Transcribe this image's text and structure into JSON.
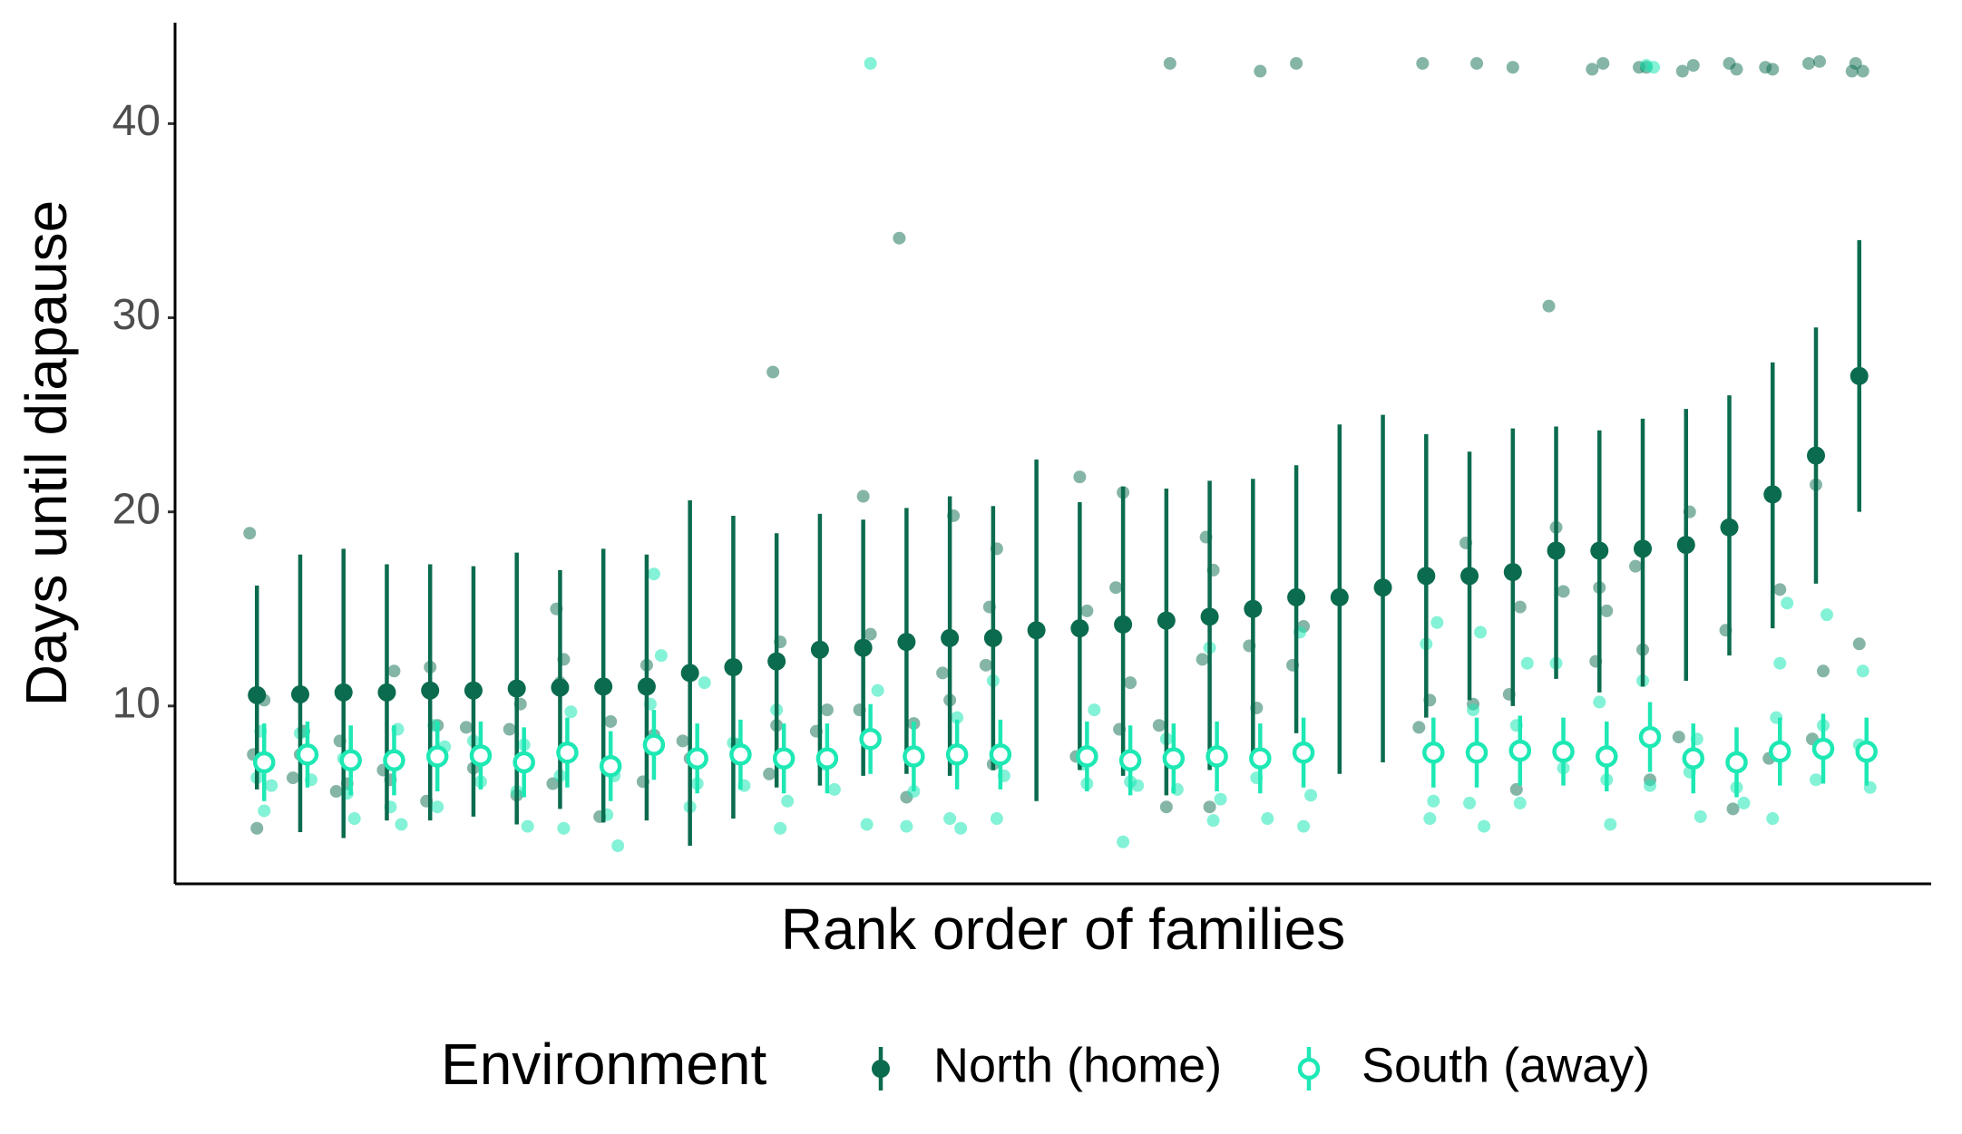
{
  "chart_data": {
    "type": "pointrange",
    "x_label": "Rank order of families",
    "y_label": "Days until diapause",
    "legend_title": "Environment",
    "legend_position": "bottom",
    "categories": [
      null,
      null,
      null,
      null,
      null,
      null,
      null,
      null,
      null,
      null,
      null,
      null,
      null,
      null,
      null,
      null,
      null,
      null,
      null,
      null,
      null,
      null,
      null,
      null,
      null,
      null,
      null,
      null,
      null,
      null,
      null,
      null,
      null,
      null,
      null,
      null,
      null,
      null
    ],
    "ylim": [
      0.84,
      45.2
    ],
    "yticks": [
      10,
      20,
      30,
      40
    ],
    "grid": false,
    "series": [
      {
        "name": "North (home)",
        "color": "#0b6b4e",
        "marker": "filled",
        "values": [
          10.56,
          10.6,
          10.7,
          10.7,
          10.8,
          10.8,
          10.9,
          10.95,
          11.0,
          11.0,
          11.7,
          12.0,
          12.3,
          12.9,
          13.0,
          13.3,
          13.5,
          13.5,
          13.9,
          14.0,
          14.2,
          14.4,
          14.6,
          15.0,
          15.6,
          15.6,
          16.1,
          16.7,
          16.7,
          16.9,
          18.0,
          18.0,
          18.1,
          18.3,
          19.2,
          20.9,
          22.9,
          27.0
        ],
        "lower": [
          5.7,
          3.5,
          3.2,
          4.1,
          4.1,
          4.3,
          3.9,
          4.7,
          4.0,
          4.1,
          2.8,
          4.2,
          5.8,
          5.9,
          6.4,
          6.5,
          6.4,
          6.7,
          5.1,
          6.7,
          6.4,
          5.4,
          6.7,
          7.2,
          8.6,
          6.5,
          7.1,
          9.4,
          10.3,
          10.0,
          11.4,
          10.7,
          11.0,
          11.3,
          12.6,
          14.0,
          16.3,
          20.0
        ],
        "upper": [
          16.2,
          17.8,
          18.1,
          17.3,
          17.3,
          17.2,
          17.9,
          17.0,
          18.1,
          17.8,
          20.6,
          19.8,
          18.9,
          19.9,
          19.6,
          20.2,
          20.8,
          20.3,
          22.7,
          20.5,
          21.3,
          21.2,
          21.6,
          21.7,
          22.4,
          24.5,
          25.0,
          24.0,
          23.1,
          24.3,
          24.4,
          24.2,
          24.8,
          25.3,
          26.0,
          27.7,
          29.5,
          34.0
        ],
        "raw": [
          [
            18.9,
            3.7,
            10.3,
            7.5
          ],
          [
            8.7,
            6.3,
            7.5
          ],
          [
            8.2,
            6.0,
            5.6
          ],
          [
            11.8,
            6.7,
            6.2
          ],
          [
            12.0,
            9.0,
            5.1
          ],
          [
            8.9,
            6.8
          ],
          [
            10.1,
            8.8,
            5.4
          ],
          [
            15.0,
            12.4,
            6.0,
            11.2
          ],
          [
            9.2,
            4.3
          ],
          [
            12.1,
            8.5,
            6.1
          ],
          [
            8.2,
            7.3
          ],
          [
            8.0
          ],
          [
            27.2,
            13.3,
            6.5,
            9.0
          ],
          [
            9.8,
            8.7
          ],
          [
            20.8,
            13.7,
            9.8
          ],
          [
            34.1,
            5.3,
            9.1
          ],
          [
            19.8,
            11.7,
            10.3
          ],
          [
            15.1,
            18.1,
            12.1,
            7.0
          ],
          [],
          [
            21.8,
            14.9,
            7.4
          ],
          [
            16.1,
            21.0,
            11.2,
            8.8
          ],
          [
            43.1,
            9.0,
            4.8
          ],
          [
            18.7,
            17.0,
            12.4,
            4.8
          ],
          [
            42.7,
            13.1,
            9.9
          ],
          [
            43.1,
            14.1,
            12.1
          ],
          [],
          [],
          [
            43.1,
            10.3,
            8.9
          ],
          [
            43.1,
            18.4,
            10.1
          ],
          [
            42.9,
            15.1,
            10.6,
            5.7
          ],
          [
            30.6,
            19.2,
            15.9
          ],
          [
            43.1,
            42.8,
            16.1,
            14.9,
            12.3
          ],
          [
            42.9,
            42.9,
            17.2,
            12.9,
            6.2
          ],
          [
            43.0,
            42.7,
            20.0,
            8.4
          ],
          [
            43.1,
            42.8,
            13.9,
            4.7
          ],
          [
            42.9,
            42.8,
            16.0,
            7.3
          ],
          [
            43.2,
            43.1,
            21.4,
            11.8,
            8.3
          ],
          [
            43.1,
            42.7,
            42.7,
            13.2
          ]
        ]
      },
      {
        "name": "South (away)",
        "color": "#1ee8b4",
        "marker": "open",
        "values": [
          7.1,
          7.5,
          7.2,
          7.2,
          7.4,
          7.45,
          7.1,
          7.6,
          6.9,
          8.0,
          7.3,
          7.5,
          7.3,
          7.3,
          8.3,
          7.4,
          7.5,
          7.5,
          null,
          7.4,
          7.2,
          7.3,
          7.4,
          7.3,
          7.6,
          null,
          null,
          7.6,
          7.6,
          7.7,
          7.65,
          7.4,
          8.4,
          7.3,
          7.1,
          7.65,
          7.8,
          7.65
        ],
        "lower": [
          5.1,
          5.8,
          5.4,
          5.4,
          5.6,
          5.7,
          5.3,
          5.8,
          5.1,
          6.2,
          5.5,
          5.7,
          5.5,
          5.5,
          6.5,
          5.6,
          5.7,
          5.7,
          null,
          5.6,
          5.4,
          5.5,
          5.6,
          5.5,
          5.8,
          null,
          null,
          5.8,
          5.8,
          5.9,
          5.9,
          5.6,
          6.6,
          5.5,
          5.3,
          5.9,
          6.0,
          5.9
        ],
        "upper": [
          9.1,
          9.2,
          9.0,
          9.0,
          9.2,
          9.2,
          8.9,
          9.4,
          8.7,
          9.8,
          9.1,
          9.3,
          9.1,
          9.1,
          10.1,
          9.2,
          9.3,
          9.3,
          null,
          9.2,
          9.0,
          9.1,
          9.2,
          9.1,
          9.4,
          null,
          null,
          9.4,
          9.4,
          9.5,
          9.4,
          9.2,
          10.2,
          9.1,
          8.9,
          9.4,
          9.6,
          9.4
        ],
        "raw": [
          [
            6.3,
            4.6,
            5.9,
            8.7
          ],
          [
            6.2,
            8.6
          ],
          [
            5.5,
            4.2,
            7.3
          ],
          [
            3.9,
            4.8,
            8.8
          ],
          [
            4.8,
            7.9,
            9.0
          ],
          [
            8.2,
            6.1
          ],
          [
            3.8,
            5.6,
            8.0
          ],
          [
            3.7,
            9.7,
            6.4
          ],
          [
            2.8,
            4.4,
            6.4
          ],
          [
            16.8,
            12.6,
            10.1
          ],
          [
            4.8,
            6.0,
            11.2
          ],
          [
            5.9,
            8.1
          ],
          [
            3.7,
            5.1,
            9.8
          ],
          [
            5.7,
            7.0
          ],
          [
            43.1,
            10.8,
            3.9
          ],
          [
            3.8,
            5.6
          ],
          [
            3.7,
            4.2,
            9.4
          ],
          [
            4.2,
            6.4,
            11.3
          ],
          [],
          [
            6.0,
            9.8,
            7.0
          ],
          [
            3.0,
            6.1,
            5.9
          ],
          [
            5.7,
            8.3
          ],
          [
            4.1,
            5.2,
            13.0
          ],
          [
            4.2,
            6.3
          ],
          [
            3.8,
            5.4,
            13.8
          ],
          [],
          [],
          [
            4.2,
            14.3,
            13.2,
            5.1
          ],
          [
            3.8,
            9.8,
            13.8,
            5.0
          ],
          [
            5.0,
            12.2,
            9.0
          ],
          [
            12.2,
            6.8
          ],
          [
            3.9,
            10.2,
            6.2
          ],
          [
            43.0,
            42.9,
            11.3,
            5.9
          ],
          [
            4.3,
            6.6,
            8.3
          ],
          [
            5.8,
            5.0
          ],
          [
            4.2,
            12.2,
            15.3,
            9.4
          ],
          [
            14.7,
            6.2,
            9.0
          ],
          [
            11.8,
            5.8,
            8.0
          ]
        ]
      }
    ]
  }
}
